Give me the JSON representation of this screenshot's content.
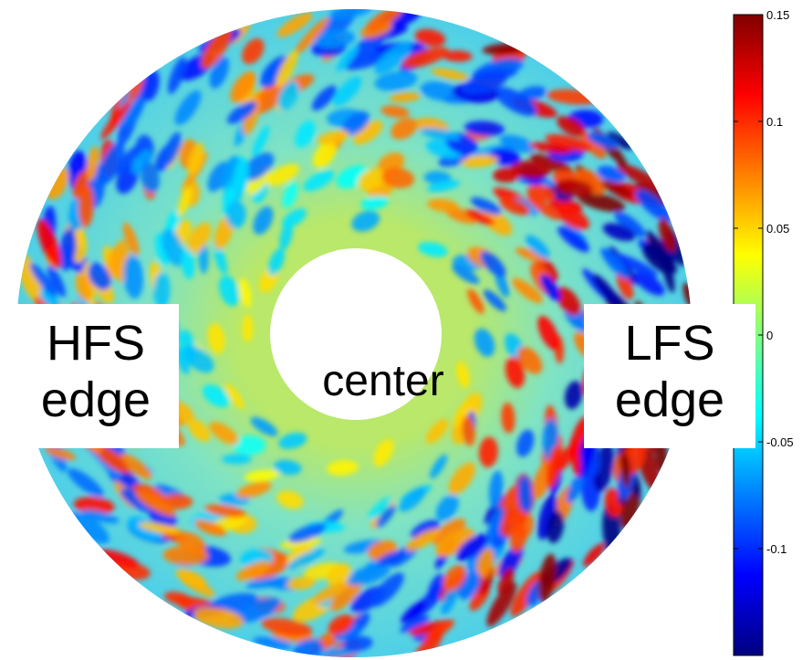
{
  "chart_data": {
    "type": "heatmap",
    "shape": "annulus",
    "colormap": "jet",
    "color_range": [
      -0.15,
      0.15
    ],
    "colorbar": {
      "location": "right",
      "ticks": [
        {
          "value": 0.15,
          "label": "0.15"
        },
        {
          "value": 0.1,
          "label": "0.1"
        },
        {
          "value": 0.05,
          "label": "0.05"
        },
        {
          "value": 0,
          "label": "0"
        },
        {
          "value": -0.05,
          "label": "-0.05"
        },
        {
          "value": -0.1,
          "label": "-0.1"
        }
      ]
    },
    "annotations": {
      "hfs_line1": "HFS",
      "hfs_line2": "edge",
      "center": "center",
      "lfs_line1": "LFS",
      "lfs_line2": "edge"
    },
    "structure": "turbulent eddies elongated along the poloidal direction; largest amplitudes at the outer edge on the low-field side (right), quieter near the center hole"
  }
}
